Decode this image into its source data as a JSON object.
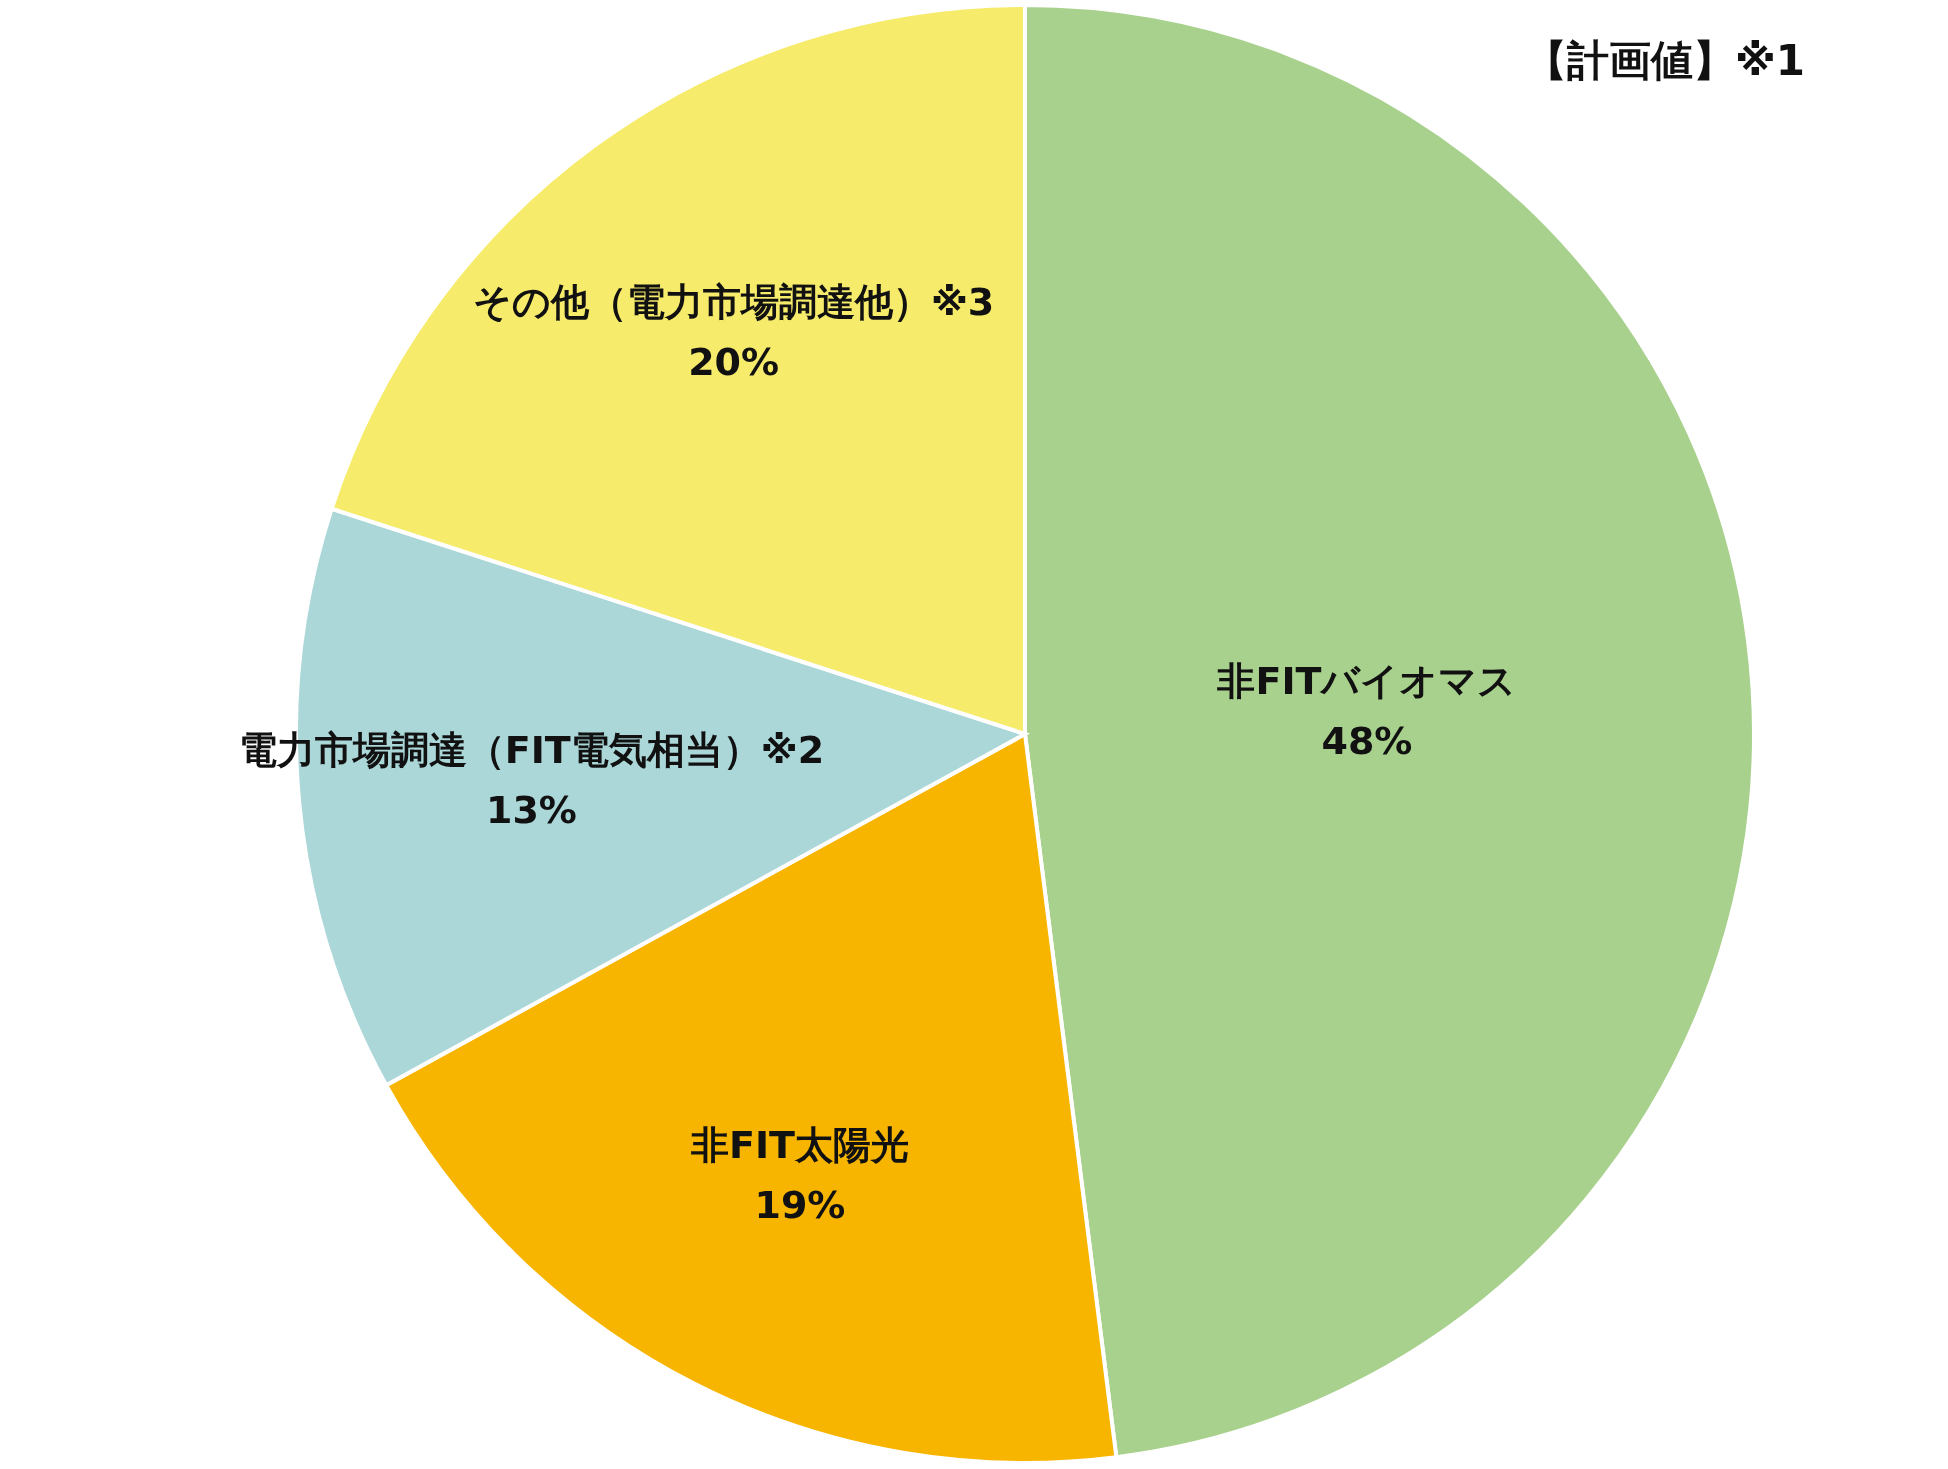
{
  "chart_data": {
    "type": "pie",
    "categories": [
      "非FITバイオマス",
      "非FIT太陽光",
      "電力市場調達（FIT電気相当）※2",
      "その他（電力市場調達他）※3"
    ],
    "values": [
      48,
      19,
      13,
      20
    ],
    "colors": [
      "#a9d18e",
      "#f7b500",
      "#abd7d9",
      "#f7eb6b"
    ],
    "value_labels": [
      "48%",
      "19%",
      "13%",
      "20%"
    ],
    "annotations": [
      "【計画値】※1"
    ]
  }
}
